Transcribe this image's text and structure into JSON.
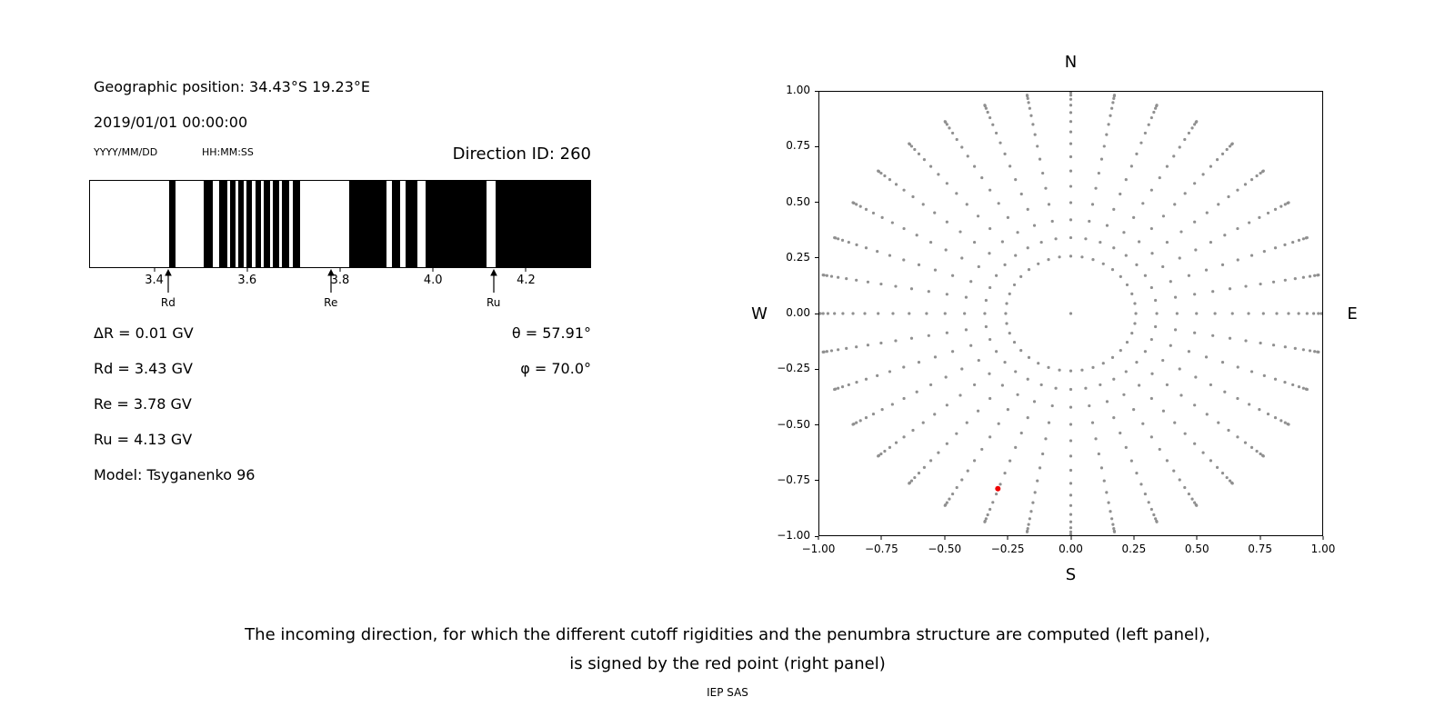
{
  "left": {
    "geographic_position": "Geographic position: 34.43°S 19.23°E",
    "datetime": "2019/01/01 00:00:00",
    "date_format_hint": "YYYY/MM/DD",
    "time_format_hint": "HH:MM:SS",
    "direction_id": "Direction ID: 260",
    "values": [
      {
        "id": "delta-r",
        "text": "ΔR = 0.01 GV"
      },
      {
        "id": "rd",
        "text": "Rd = 3.43 GV"
      },
      {
        "id": "re",
        "text": "Re = 3.78 GV"
      },
      {
        "id": "ru",
        "text": "Ru = 4.13 GV"
      },
      {
        "id": "model",
        "text": "Model: Tsyganenko 96"
      }
    ],
    "angles": [
      {
        "id": "theta",
        "text": "θ = 57.91°"
      },
      {
        "id": "phi",
        "text": "φ = 70.0°"
      }
    ]
  },
  "caption": {
    "line1": "The incoming direction, for which the different cutoff rigidities and the penumbra structure are computed (left panel),",
    "line2": "is signed by the red point (right panel)",
    "credit": "IEP SAS"
  },
  "chart_data": [
    {
      "type": "bar",
      "subtype": "penumbra-barcode",
      "description_visible": false,
      "xlim": [
        3.26,
        4.34
      ],
      "xtick_values": [
        3.4,
        3.6,
        3.8,
        4.0,
        4.2
      ],
      "xtick_labels": [
        "3.4",
        "3.6",
        "3.8",
        "4.0",
        "4.2"
      ],
      "band_color": "#000000",
      "black_bands_gv": [
        [
          3.43,
          3.444
        ],
        [
          3.505,
          3.525
        ],
        [
          3.538,
          3.556
        ],
        [
          3.562,
          3.574
        ],
        [
          3.58,
          3.592
        ],
        [
          3.598,
          3.61
        ],
        [
          3.617,
          3.63
        ],
        [
          3.636,
          3.649
        ],
        [
          3.655,
          3.668
        ],
        [
          3.675,
          3.69
        ],
        [
          3.698,
          3.713
        ],
        [
          3.82,
          3.9
        ],
        [
          3.912,
          3.93
        ],
        [
          3.942,
          3.966
        ],
        [
          3.984,
          4.116
        ],
        [
          4.136,
          4.34
        ]
      ],
      "markers": [
        {
          "label": "Rd",
          "value": 3.43
        },
        {
          "label": "Re",
          "value": 3.78
        },
        {
          "label": "Ru",
          "value": 4.13
        }
      ]
    },
    {
      "type": "scatter",
      "xlim": [
        -1,
        1
      ],
      "ylim": [
        -1,
        1
      ],
      "xtick_values": [
        -1,
        -0.75,
        -0.5,
        -0.25,
        0,
        0.25,
        0.5,
        0.75,
        1
      ],
      "xtick_labels": [
        "−1.00",
        "−0.75",
        "−0.50",
        "−0.25",
        "0.00",
        "0.25",
        "0.50",
        "0.75",
        "1.00"
      ],
      "ytick_values": [
        1,
        0.75,
        0.5,
        0.25,
        0,
        -0.25,
        -0.5,
        -0.75,
        -1
      ],
      "ytick_labels": [
        "1.00",
        "0.75",
        "0.50",
        "0.25",
        "0.00",
        "−0.25",
        "−0.50",
        "−0.75",
        "−1.00"
      ],
      "compass_labels": {
        "top": "N",
        "bottom": "S",
        "left": "W",
        "right": "E"
      },
      "direction_grid": {
        "azimuth_start_deg": 0,
        "azimuth_step_deg": 10,
        "azimuth_count": 36,
        "zenith_min_deg": 15,
        "zenith_max_deg": 90,
        "zenith_step_deg": 5,
        "radius_mapping": "sin(zenith)",
        "includes_center_point": true,
        "color": "#909090",
        "dot_radius_px": 1.6
      },
      "red_point": {
        "x": -0.29,
        "y": -0.79,
        "theta_deg": 57.91,
        "phi_deg": 70.0,
        "color": "#ee0000",
        "radius_px": 3
      }
    }
  ]
}
